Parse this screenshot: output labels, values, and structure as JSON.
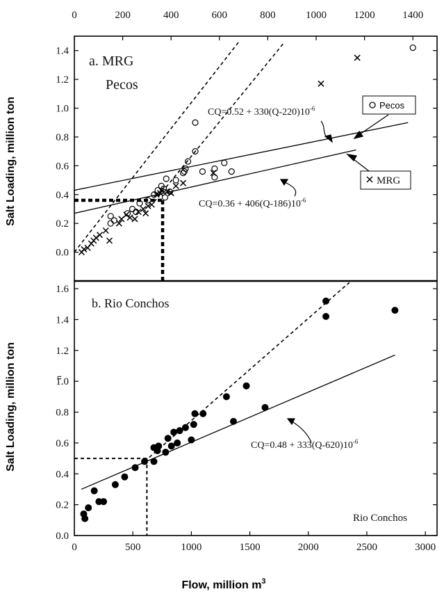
{
  "chart_data": [
    {
      "type": "scatter",
      "panel_label": "a. MRG",
      "panel_sublabel": "Pecos",
      "ylabel": "Salt Loading, million ton",
      "xlabel_top": "",
      "xlim": [
        0,
        1500
      ],
      "ylim": [
        -0.2,
        1.5
      ],
      "x_ticks": [
        "0",
        "200",
        "400",
        "600",
        "800",
        "1000",
        "1200",
        "1400"
      ],
      "y_ticks": [
        "0.0",
        "0.2",
        "0.4",
        "0.6",
        "0.8",
        "1.0",
        "1.2",
        "1.4"
      ],
      "legend": [
        {
          "name": "Pecos",
          "marker": "circle-open"
        },
        {
          "name": "MRG",
          "marker": "cross"
        }
      ],
      "series": [
        {
          "name": "Pecos",
          "marker": "circle-open",
          "points": [
            [
              150,
              0.2
            ],
            [
              150,
              0.25
            ],
            [
              165,
              0.22
            ],
            [
              220,
              0.27
            ],
            [
              240,
              0.3
            ],
            [
              255,
              0.28
            ],
            [
              270,
              0.34
            ],
            [
              305,
              0.36
            ],
            [
              330,
              0.4
            ],
            [
              345,
              0.43
            ],
            [
              360,
              0.46
            ],
            [
              370,
              0.44
            ],
            [
              375,
              0.38
            ],
            [
              395,
              0.42
            ],
            [
              380,
              0.51
            ],
            [
              420,
              0.5
            ],
            [
              450,
              0.55
            ],
            [
              460,
              0.58
            ],
            [
              470,
              0.63
            ],
            [
              455,
              0.56
            ],
            [
              530,
              0.56
            ],
            [
              580,
              0.52
            ],
            [
              580,
              0.58
            ],
            [
              620,
              0.62
            ],
            [
              650,
              0.56
            ],
            [
              500,
              0.7
            ],
            [
              500,
              0.9
            ],
            [
              1400,
              1.42
            ]
          ]
        },
        {
          "name": "MRG",
          "marker": "cross",
          "points": [
            [
              30,
              0.0
            ],
            [
              40,
              0.02
            ],
            [
              55,
              0.03
            ],
            [
              70,
              0.06
            ],
            [
              80,
              0.08
            ],
            [
              90,
              0.1
            ],
            [
              105,
              0.12
            ],
            [
              130,
              0.15
            ],
            [
              145,
              0.08
            ],
            [
              185,
              0.2
            ],
            [
              195,
              0.23
            ],
            [
              215,
              0.26
            ],
            [
              230,
              0.24
            ],
            [
              250,
              0.23
            ],
            [
              265,
              0.28
            ],
            [
              285,
              0.3
            ],
            [
              295,
              0.27
            ],
            [
              305,
              0.32
            ],
            [
              320,
              0.33
            ],
            [
              340,
              0.4
            ],
            [
              355,
              0.41
            ],
            [
              360,
              0.43
            ],
            [
              385,
              0.42
            ],
            [
              400,
              0.41
            ],
            [
              420,
              0.46
            ],
            [
              450,
              0.48
            ],
            [
              575,
              0.55
            ],
            [
              1020,
              1.17
            ],
            [
              1170,
              1.35
            ]
          ]
        }
      ],
      "fit_lines": [
        {
          "label": "CQ=0.52 + 330(Q-220)10",
          "exponent": "-6",
          "style": "solid",
          "x": [
            0,
            1380
          ],
          "y": [
            0.43,
            0.9
          ]
        },
        {
          "label": "CQ=0.36 + 406(Q-186)10",
          "exponent": "-6",
          "style": "solid",
          "x": [
            0,
            1165
          ],
          "y": [
            0.27,
            0.71
          ]
        },
        {
          "label": "",
          "style": "dashed",
          "x": [
            0,
            680
          ],
          "y": [
            0.0,
            1.46
          ]
        },
        {
          "label": "",
          "style": "dashed",
          "x": [
            330,
            870
          ],
          "y": [
            0.35,
            1.46
          ]
        }
      ],
      "reference_point": {
        "x": 365,
        "y": 0.36
      }
    },
    {
      "type": "scatter",
      "panel_label": "b. Rio Conchos",
      "ylabel": "Salt Loading, million ton",
      "extra_mark": "n",
      "xlabel": "Flow, million m",
      "xlabel_superscript": "3",
      "xlim": [
        0,
        3100
      ],
      "ylim": [
        0,
        1.65
      ],
      "x_ticks": [
        "0",
        "500",
        "1000",
        "1500",
        "2000",
        "2500",
        "3000"
      ],
      "y_ticks": [
        "0.0",
        "0.2",
        "0.4",
        "0.6",
        "0.8",
        "1.0",
        "1.2",
        "1.4",
        "1.6"
      ],
      "legend_text": "Rio Conchos",
      "series": [
        {
          "name": "Rio Conchos",
          "marker": "circle-filled",
          "points": [
            [
              80,
              0.14
            ],
            [
              90,
              0.11
            ],
            [
              120,
              0.18
            ],
            [
              170,
              0.29
            ],
            [
              210,
              0.22
            ],
            [
              250,
              0.22
            ],
            [
              350,
              0.33
            ],
            [
              430,
              0.38
            ],
            [
              520,
              0.44
            ],
            [
              600,
              0.48
            ],
            [
              680,
              0.48
            ],
            [
              680,
              0.57
            ],
            [
              720,
              0.58
            ],
            [
              710,
              0.55
            ],
            [
              780,
              0.54
            ],
            [
              800,
              0.63
            ],
            [
              850,
              0.67
            ],
            [
              830,
              0.58
            ],
            [
              880,
              0.6
            ],
            [
              900,
              0.68
            ],
            [
              950,
              0.7
            ],
            [
              1000,
              0.62
            ],
            [
              1020,
              0.72
            ],
            [
              1030,
              0.79
            ],
            [
              1100,
              0.79
            ],
            [
              1300,
              0.9
            ],
            [
              1360,
              0.74
            ],
            [
              1470,
              0.97
            ],
            [
              1630,
              0.83
            ],
            [
              2150,
              1.52
            ],
            [
              2150,
              1.42
            ],
            [
              2740,
              1.46
            ]
          ]
        }
      ],
      "fit_lines": [
        {
          "label": "CQ=0.48 + 333(Q-620)10",
          "exponent": "-6",
          "style": "solid",
          "x": [
            60,
            2740
          ],
          "y": [
            0.3,
            1.17
          ]
        },
        {
          "label": "",
          "style": "dashed",
          "x": [
            600,
            2350
          ],
          "y": [
            0.48,
            1.64
          ]
        }
      ],
      "reference_point": {
        "x": 620,
        "y": 0.5
      }
    }
  ]
}
